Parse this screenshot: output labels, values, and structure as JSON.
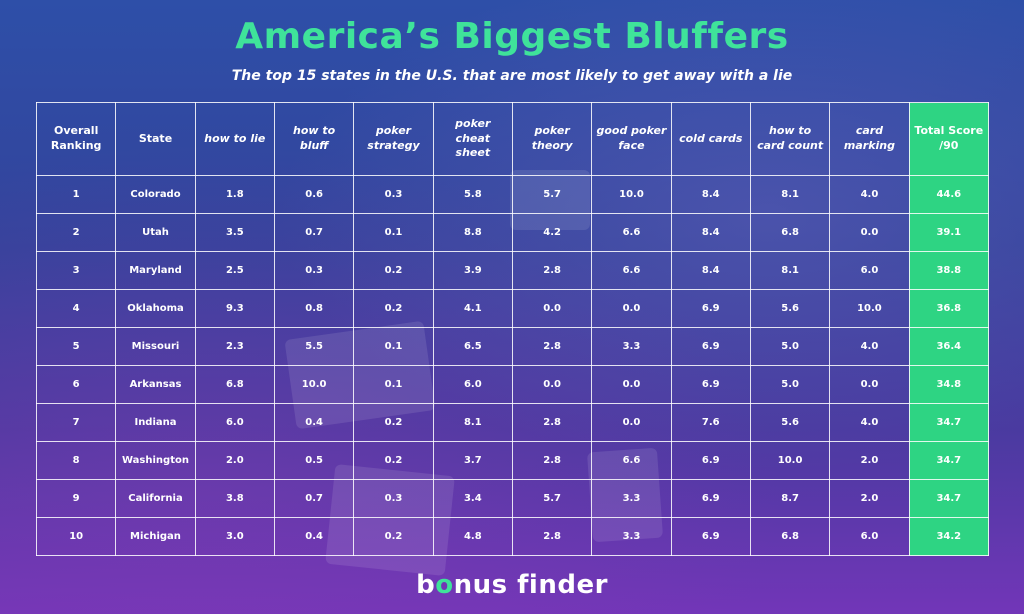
{
  "title": "America’s Biggest Bluffers",
  "subtitle": "The top 15 states in the U.S. that are most likely to get away with a lie",
  "logo": {
    "text_b": "b",
    "text_o": "o",
    "text_rest": "nus finder"
  },
  "colors": {
    "title": "#3fe39a",
    "total_column": "#2ed483"
  },
  "chart_data": {
    "type": "table",
    "columns": [
      "Overall Ranking",
      "State",
      "how to lie",
      "how to bluff",
      "poker strategy",
      "poker cheat sheet",
      "poker theory",
      "good poker face",
      "cold cards",
      "how to card count",
      "card marking",
      "Total Score /90"
    ],
    "rows": [
      [
        "1",
        "Colorado",
        "1.8",
        "0.6",
        "0.3",
        "5.8",
        "5.7",
        "10.0",
        "8.4",
        "8.1",
        "4.0",
        "44.6"
      ],
      [
        "2",
        "Utah",
        "3.5",
        "0.7",
        "0.1",
        "8.8",
        "4.2",
        "6.6",
        "8.4",
        "6.8",
        "0.0",
        "39.1"
      ],
      [
        "3",
        "Maryland",
        "2.5",
        "0.3",
        "0.2",
        "3.9",
        "2.8",
        "6.6",
        "8.4",
        "8.1",
        "6.0",
        "38.8"
      ],
      [
        "4",
        "Oklahoma",
        "9.3",
        "0.8",
        "0.2",
        "4.1",
        "0.0",
        "0.0",
        "6.9",
        "5.6",
        "10.0",
        "36.8"
      ],
      [
        "5",
        "Missouri",
        "2.3",
        "5.5",
        "0.1",
        "6.5",
        "2.8",
        "3.3",
        "6.9",
        "5.0",
        "4.0",
        "36.4"
      ],
      [
        "6",
        "Arkansas",
        "6.8",
        "10.0",
        "0.1",
        "6.0",
        "0.0",
        "0.0",
        "6.9",
        "5.0",
        "0.0",
        "34.8"
      ],
      [
        "7",
        "Indiana",
        "6.0",
        "0.4",
        "0.2",
        "8.1",
        "2.8",
        "0.0",
        "7.6",
        "5.6",
        "4.0",
        "34.7"
      ],
      [
        "8",
        "Washington",
        "2.0",
        "0.5",
        "0.2",
        "3.7",
        "2.8",
        "6.6",
        "6.9",
        "10.0",
        "2.0",
        "34.7"
      ],
      [
        "9",
        "California",
        "3.8",
        "0.7",
        "0.3",
        "3.4",
        "5.7",
        "3.3",
        "6.9",
        "8.7",
        "2.0",
        "34.7"
      ],
      [
        "10",
        "Michigan",
        "3.0",
        "0.4",
        "0.2",
        "4.8",
        "2.8",
        "3.3",
        "6.9",
        "6.8",
        "6.0",
        "34.2"
      ]
    ]
  }
}
